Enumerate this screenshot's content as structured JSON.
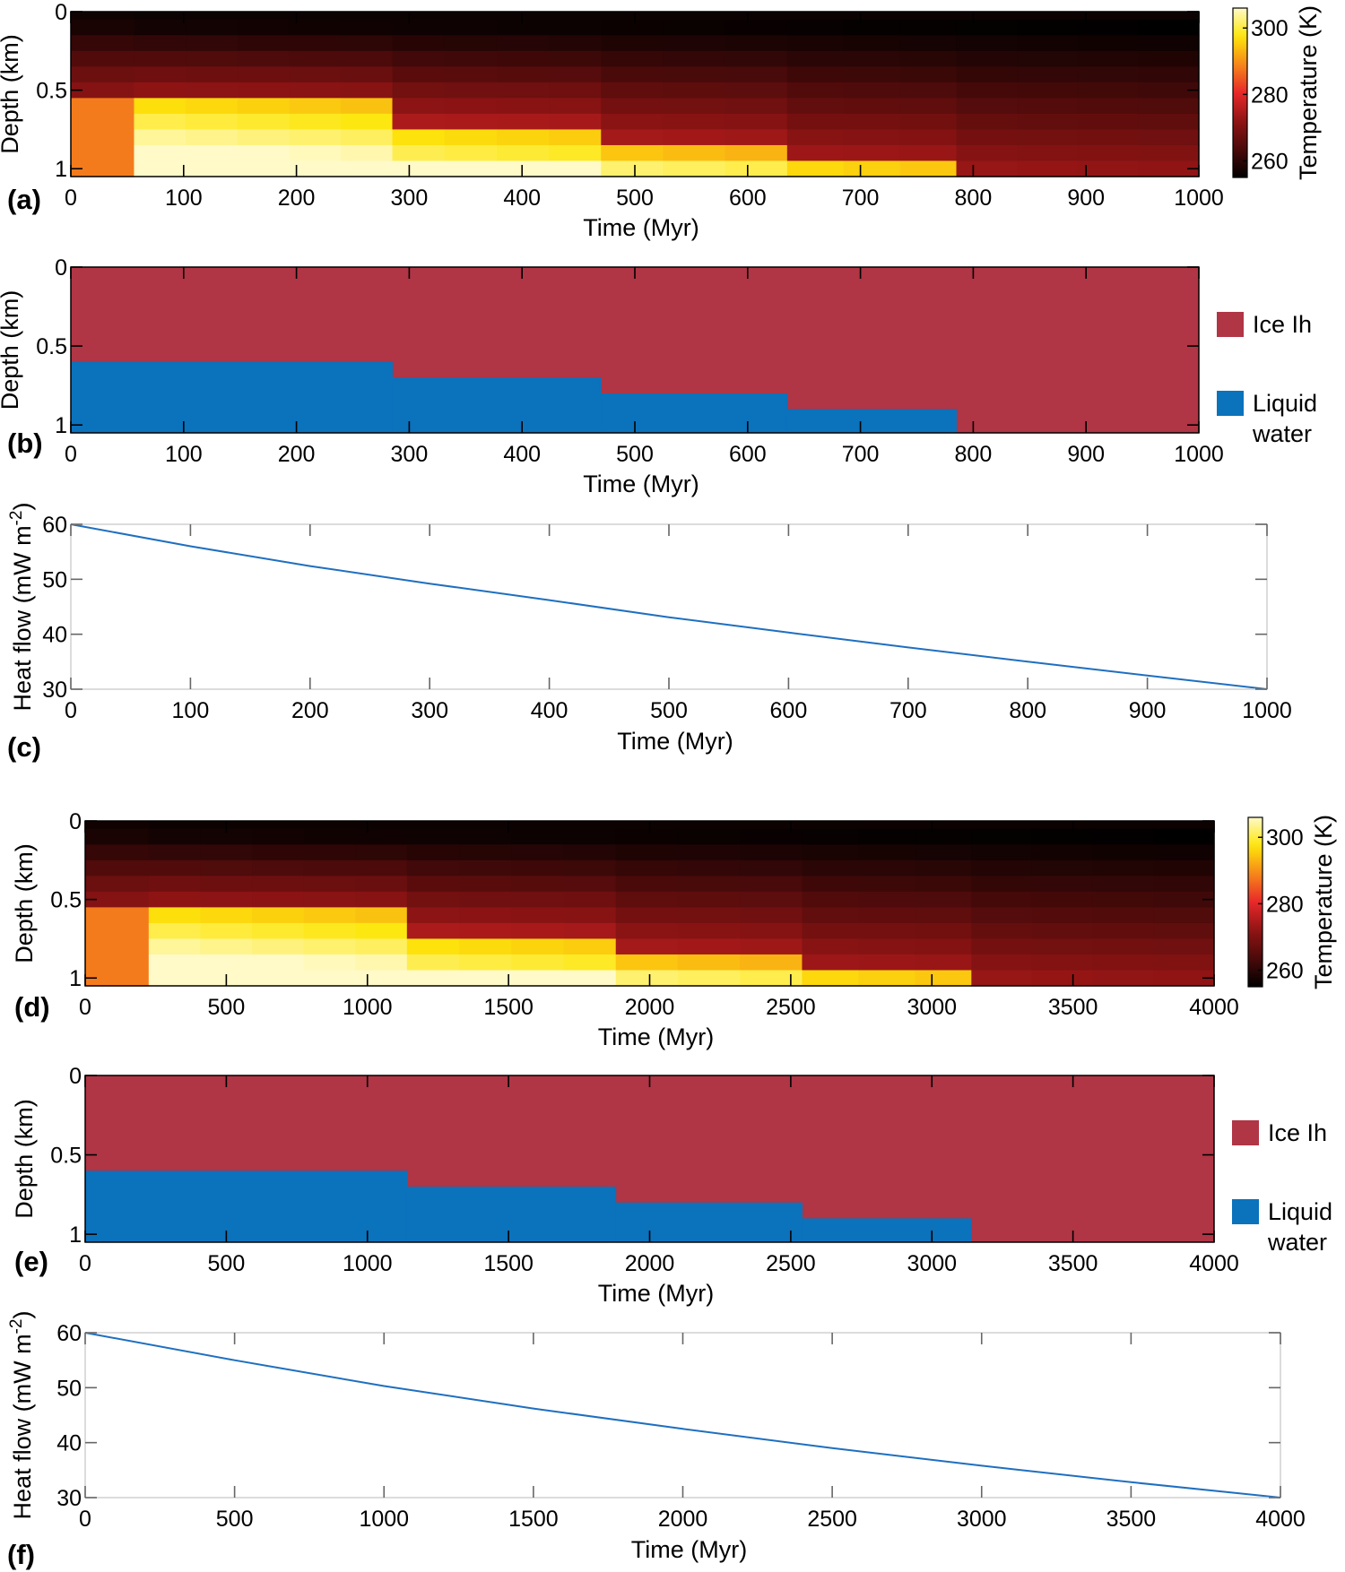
{
  "colors": {
    "ice": "#b03545",
    "liquid": "#0b72bc",
    "heat_line": "#1f6fbf",
    "colormap_hot_stops": [
      "#000000",
      "#4a0a0a",
      "#8f1414",
      "#e8282a",
      "#f6861a",
      "#fde60a",
      "#fffac8"
    ]
  },
  "chart_data": [
    {
      "id": "a",
      "type": "heatmap",
      "panel_label": "(a)",
      "xlabel": "Time (Myr)",
      "ylabel": "Depth (km)",
      "xlim": [
        0,
        1000
      ],
      "ylim": [
        0,
        1.05
      ],
      "xticks": [
        0,
        100,
        200,
        300,
        400,
        500,
        600,
        700,
        800,
        900,
        1000
      ],
      "yticks": [
        0,
        0.5,
        1
      ],
      "ytick_labels": [
        "0",
        "0.5",
        "1"
      ],
      "depth_layers": [
        0.05,
        0.15,
        0.25,
        0.35,
        0.45,
        0.55,
        0.65,
        0.75,
        0.85,
        0.95,
        1.05
      ],
      "phase_steps": [
        {
          "t0": 0,
          "t1": 56,
          "interface_depth": 0.6
        },
        {
          "t0": 56,
          "t1": 285,
          "interface_depth": 0.6
        },
        {
          "t0": 285,
          "t1": 470,
          "interface_depth": 0.7
        },
        {
          "t0": 470,
          "t1": 635,
          "interface_depth": 0.8
        },
        {
          "t0": 635,
          "t1": 785,
          "interface_depth": 0.9
        },
        {
          "t0": 785,
          "t1": 1000,
          "interface_depth": 1.0
        }
      ],
      "colorbar": {
        "label": "Temperature (K)",
        "ticks": [
          260,
          280,
          300
        ],
        "range": [
          255,
          306
        ]
      }
    },
    {
      "id": "b",
      "type": "area",
      "panel_label": "(b)",
      "xlabel": "Time (Myr)",
      "ylabel": "Depth (km)",
      "xlim": [
        0,
        1000
      ],
      "ylim": [
        0,
        1.05
      ],
      "xticks": [
        0,
        100,
        200,
        300,
        400,
        500,
        600,
        700,
        800,
        900,
        1000
      ],
      "yticks": [
        0,
        0.5,
        1
      ],
      "ytick_labels": [
        "0",
        "0.5",
        "1"
      ],
      "liquid_steps": [
        {
          "t0": 0,
          "t1": 285,
          "top_depth": 0.6
        },
        {
          "t0": 285,
          "t1": 470,
          "top_depth": 0.7
        },
        {
          "t0": 470,
          "t1": 635,
          "top_depth": 0.8
        },
        {
          "t0": 635,
          "t1": 785,
          "top_depth": 0.9
        }
      ],
      "legend": [
        {
          "name": "Ice Ih",
          "lines": [
            "Ice Ih"
          ],
          "color": "#b03545"
        },
        {
          "name": "Liquid water",
          "lines": [
            "Liquid",
            "water"
          ],
          "color": "#0b72bc"
        }
      ]
    },
    {
      "id": "c",
      "type": "line",
      "panel_label": "(c)",
      "xlabel": "Time (Myr)",
      "ylabel": "Heat flow (mW m",
      "ylabel_sup": "-2",
      "ylabel_close": ")",
      "xlim": [
        0,
        1000
      ],
      "ylim": [
        30,
        60
      ],
      "xticks": [
        0,
        100,
        200,
        300,
        400,
        500,
        600,
        700,
        800,
        900,
        1000
      ],
      "yticks": [
        30,
        40,
        50,
        60
      ],
      "x": [
        0,
        100,
        200,
        300,
        400,
        500,
        600,
        700,
        800,
        900,
        1000
      ],
      "y": [
        60,
        56.0,
        52.4,
        49.2,
        46.2,
        43.1,
        40.3,
        37.6,
        35.0,
        32.5,
        30
      ]
    },
    {
      "id": "d",
      "type": "heatmap",
      "panel_label": "(d)",
      "xlabel": "Time (Myr)",
      "ylabel": "Depth (km)",
      "xlim": [
        0,
        4000
      ],
      "ylim": [
        0,
        1.05
      ],
      "xticks": [
        0,
        500,
        1000,
        1500,
        2000,
        2500,
        3000,
        3500,
        4000
      ],
      "yticks": [
        0,
        0.5,
        1
      ],
      "ytick_labels": [
        "0",
        "0.5",
        "1"
      ],
      "depth_layers": [
        0.05,
        0.15,
        0.25,
        0.35,
        0.45,
        0.55,
        0.65,
        0.75,
        0.85,
        0.95,
        1.05
      ],
      "phase_steps": [
        {
          "t0": 0,
          "t1": 225,
          "interface_depth": 0.6
        },
        {
          "t0": 225,
          "t1": 1140,
          "interface_depth": 0.6
        },
        {
          "t0": 1140,
          "t1": 1880,
          "interface_depth": 0.7
        },
        {
          "t0": 1880,
          "t1": 2540,
          "interface_depth": 0.8
        },
        {
          "t0": 2540,
          "t1": 3140,
          "interface_depth": 0.9
        },
        {
          "t0": 3140,
          "t1": 4000,
          "interface_depth": 1.0
        }
      ],
      "colorbar": {
        "label": "Temperature (K)",
        "ticks": [
          260,
          280,
          300
        ],
        "range": [
          255,
          306
        ]
      }
    },
    {
      "id": "e",
      "type": "area",
      "panel_label": "(e)",
      "xlabel": "Time (Myr)",
      "ylabel": "Depth (km)",
      "xlim": [
        0,
        4000
      ],
      "ylim": [
        0,
        1.05
      ],
      "xticks": [
        0,
        500,
        1000,
        1500,
        2000,
        2500,
        3000,
        3500,
        4000
      ],
      "yticks": [
        0,
        0.5,
        1
      ],
      "ytick_labels": [
        "0",
        "0.5",
        "1"
      ],
      "liquid_steps": [
        {
          "t0": 0,
          "t1": 1140,
          "top_depth": 0.6
        },
        {
          "t0": 1140,
          "t1": 1880,
          "top_depth": 0.7
        },
        {
          "t0": 1880,
          "t1": 2540,
          "top_depth": 0.8
        },
        {
          "t0": 2540,
          "t1": 3140,
          "top_depth": 0.9
        }
      ],
      "legend": [
        {
          "name": "Ice Ih",
          "lines": [
            "Ice Ih"
          ],
          "color": "#b03545"
        },
        {
          "name": "Liquid water",
          "lines": [
            "Liquid",
            "water"
          ],
          "color": "#0b72bc"
        }
      ]
    },
    {
      "id": "f",
      "type": "line",
      "panel_label": "(f)",
      "xlabel": "Time (Myr)",
      "ylabel": "Heat flow (mW m",
      "ylabel_sup": "-2",
      "ylabel_close": ")",
      "xlim": [
        0,
        4000
      ],
      "ylim": [
        30,
        60
      ],
      "xticks": [
        0,
        500,
        1000,
        1500,
        2000,
        2500,
        3000,
        3500,
        4000
      ],
      "yticks": [
        30,
        40,
        50,
        60
      ],
      "x": [
        0,
        500,
        1000,
        1500,
        2000,
        2500,
        3000,
        3500,
        4000
      ],
      "y": [
        60,
        55.0,
        50.3,
        46.2,
        42.5,
        39.0,
        35.8,
        32.8,
        30
      ]
    }
  ]
}
